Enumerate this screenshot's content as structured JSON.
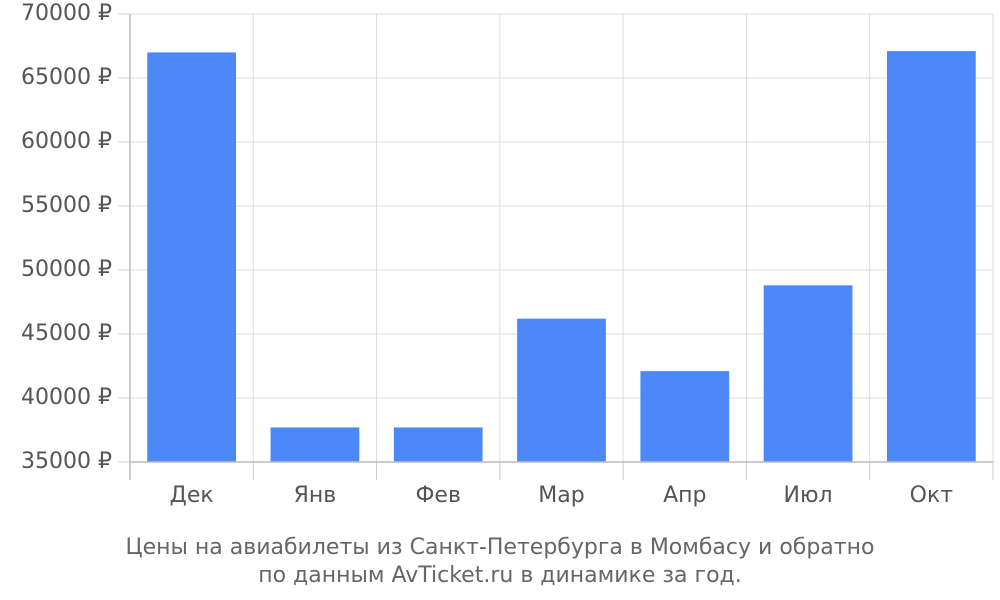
{
  "chart_data": {
    "type": "bar",
    "title": "Цены на авиабилеты из Санкт-Петербурга в Момбасу и обратно",
    "subtitle": "по данным AvTicket.ru в динамике за год.",
    "categories": [
      "Дек",
      "Янв",
      "Фев",
      "Мар",
      "Апр",
      "Июл",
      "Окт"
    ],
    "values": [
      67000,
      37700,
      37700,
      46200,
      42100,
      48800,
      67100
    ],
    "color": "#4d88f9",
    "ylim": [
      35000,
      70000
    ],
    "yticks": [
      {
        "value": 35000,
        "label": "35000 ₽"
      },
      {
        "value": 40000,
        "label": "40000 ₽"
      },
      {
        "value": 45000,
        "label": "45000 ₽"
      },
      {
        "value": 50000,
        "label": "50000 ₽"
      },
      {
        "value": 55000,
        "label": "55000 ₽"
      },
      {
        "value": 60000,
        "label": "60000 ₽"
      },
      {
        "value": 65000,
        "label": "65000 ₽"
      },
      {
        "value": 70000,
        "label": "70000 ₽"
      }
    ],
    "grid": true
  }
}
